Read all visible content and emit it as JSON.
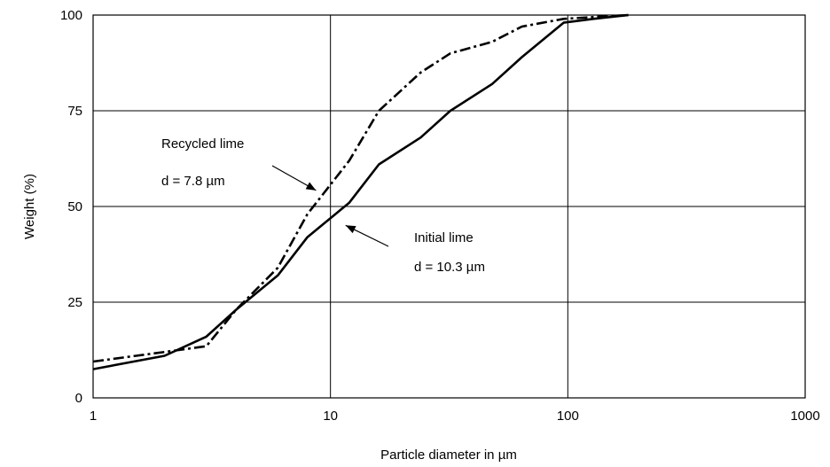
{
  "chart_data": {
    "type": "line",
    "title": "",
    "xlabel": "Particle diameter in  µm",
    "ylabel": "Weight (%)",
    "x_scale": "log",
    "xlim": [
      1,
      1000
    ],
    "ylim": [
      0,
      100
    ],
    "x_ticks": [
      1,
      10,
      100,
      1000
    ],
    "x_tick_labels": [
      "1",
      "10",
      "100",
      "1000"
    ],
    "y_ticks": [
      0,
      25,
      50,
      75,
      100
    ],
    "y_tick_labels": [
      "0",
      "25",
      "50",
      "75",
      "100"
    ],
    "grid": true,
    "series": [
      {
        "name": "Initial lime",
        "line_style": "solid",
        "points": [
          [
            1,
            7.5
          ],
          [
            2,
            11
          ],
          [
            3,
            16
          ],
          [
            4,
            23
          ],
          [
            6,
            32
          ],
          [
            8,
            42
          ],
          [
            12,
            51
          ],
          [
            16,
            61
          ],
          [
            24,
            68
          ],
          [
            32,
            75
          ],
          [
            48,
            82
          ],
          [
            64,
            89
          ],
          [
            96,
            98
          ],
          [
            128,
            99
          ],
          [
            180,
            100
          ]
        ]
      },
      {
        "name": "Recycled lime",
        "line_style": "dash-dot",
        "points": [
          [
            1,
            9.5
          ],
          [
            2,
            12
          ],
          [
            3,
            13.5
          ],
          [
            4,
            23
          ],
          [
            6,
            34
          ],
          [
            8,
            48
          ],
          [
            12,
            62
          ],
          [
            16,
            75
          ],
          [
            24,
            85
          ],
          [
            32,
            90
          ],
          [
            48,
            93
          ],
          [
            64,
            97
          ],
          [
            96,
            99
          ],
          [
            128,
            99.5
          ],
          [
            180,
            100
          ]
        ]
      }
    ],
    "annotations": [
      {
        "id": "recycled",
        "label": "Recycled lime",
        "value": "d = 7.8  µm",
        "arrow_to": [
          9,
          53.5
        ]
      },
      {
        "id": "initial",
        "label": "Initial lime",
        "value": "d = 10.3 µm",
        "arrow_to": [
          11,
          46
        ]
      }
    ]
  }
}
